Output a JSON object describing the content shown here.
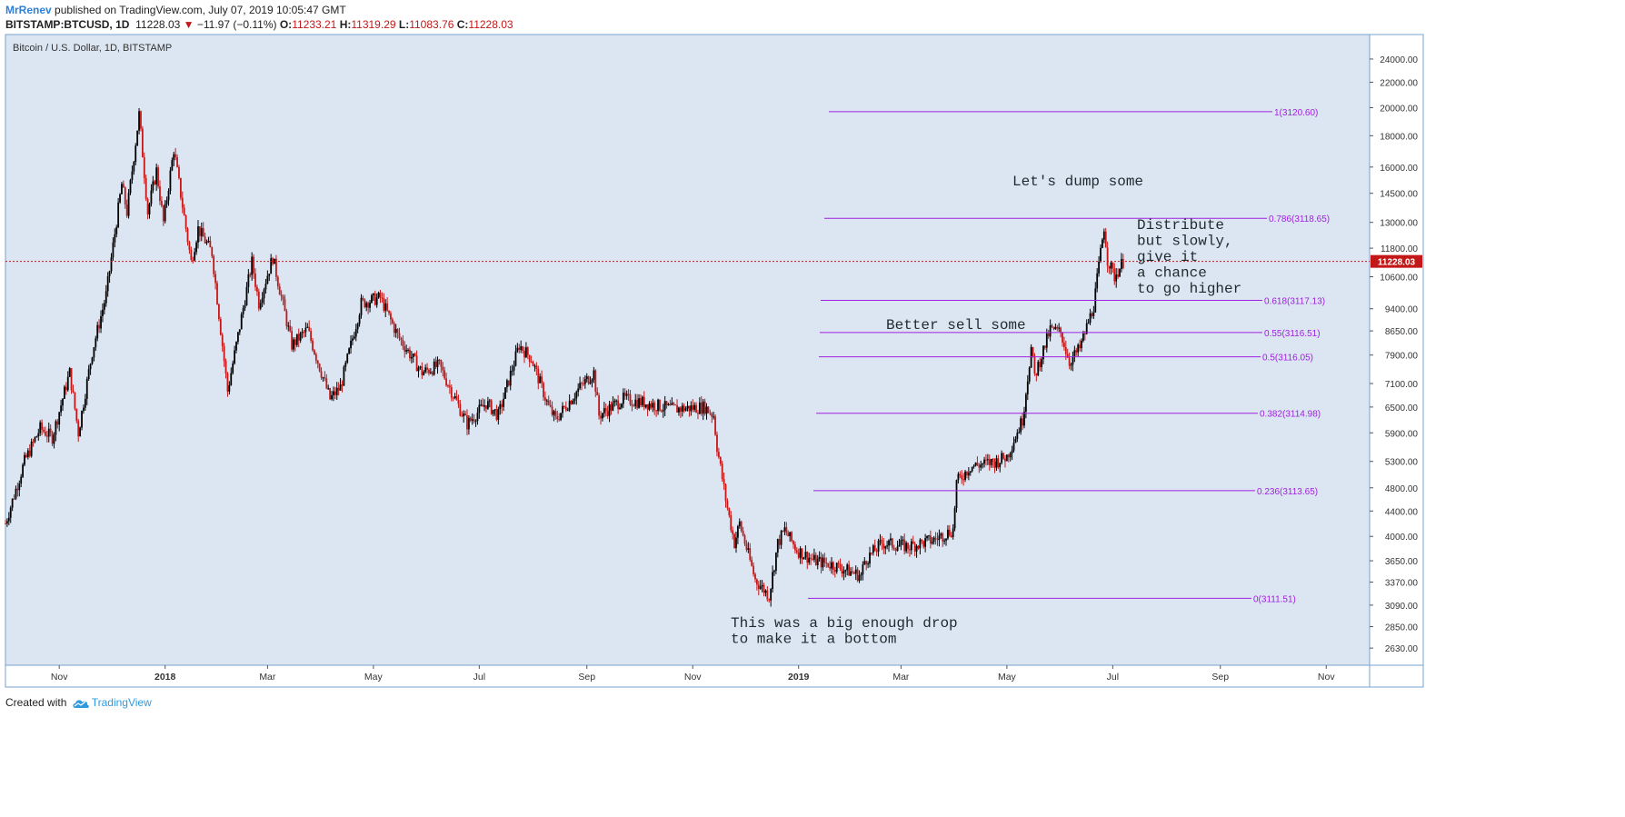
{
  "header": {
    "author": "MrRenev",
    "published": "published on TradingView.com, July 07, 2019 10:05:47 GMT",
    "symbol": "BITSTAMP:BTCUSD, 1D",
    "last": "11228.03",
    "arrow": "▼",
    "change": "−11.97 (−0.11%)",
    "o_label": "O:",
    "o_value": "11233.21",
    "h_label": "H:",
    "h_value": "11319.29",
    "l_label": "L:",
    "l_value": "11083.76",
    "c_label": "C:",
    "c_value": "11228.03"
  },
  "footer": {
    "created_with": "Created with",
    "brand": "TradingView"
  },
  "colors": {
    "background": "#dbe6f2",
    "up_candle": "#000000",
    "down_candle": "#c41818",
    "fib_line": "#a020e0",
    "price_line": "#c41818",
    "price_badge": "#c41818"
  },
  "chart_data": {
    "type": "candlestick",
    "title": "Bitcoin / U.S. Dollar, 1D, BITSTAMP",
    "x_ticks": [
      "Nov",
      "2018",
      "Mar",
      "May",
      "Jul",
      "Sep",
      "Nov",
      "2019",
      "Mar",
      "May",
      "Jul",
      "Sep",
      "Nov"
    ],
    "x_tick_dates": [
      "2017-11-01",
      "2018-01-01",
      "2018-03-01",
      "2018-05-01",
      "2018-07-01",
      "2018-09-01",
      "2018-11-01",
      "2019-01-01",
      "2019-03-01",
      "2019-05-01",
      "2019-07-01",
      "2019-09-01",
      "2019-11-01"
    ],
    "y_scale": "log",
    "y_range": [
      2500,
      25000
    ],
    "y_ticks": [
      "24000.00",
      "22000.00",
      "20000.00",
      "18000.00",
      "16000.00",
      "14500.00",
      "13000.00",
      "11800.00",
      "10600.00",
      "9400.00",
      "8650.00",
      "7900.00",
      "7100.00",
      "6500.00",
      "5900.00",
      "5300.00",
      "4800.00",
      "4400.00",
      "4000.00",
      "3650.00",
      "3370.00",
      "3090.00",
      "2850.00",
      "2630.00"
    ],
    "current_price": 11228.03,
    "current_price_label": "11228.03",
    "price_path": [
      [
        "2017-10-01",
        4200
      ],
      [
        "2017-10-12",
        5300
      ],
      [
        "2017-10-21",
        6000
      ],
      [
        "2017-10-28",
        5800
      ],
      [
        "2017-11-07",
        7400
      ],
      [
        "2017-11-12",
        5900
      ],
      [
        "2017-11-20",
        8000
      ],
      [
        "2017-11-28",
        9900
      ],
      [
        "2017-12-07",
        15000
      ],
      [
        "2017-12-10",
        13500
      ],
      [
        "2017-12-17",
        19500
      ],
      [
        "2017-12-22",
        13500
      ],
      [
        "2017-12-27",
        15800
      ],
      [
        "2017-12-31",
        13000
      ],
      [
        "2018-01-06",
        17100
      ],
      [
        "2018-01-16",
        11200
      ],
      [
        "2018-01-20",
        12700
      ],
      [
        "2018-01-28",
        11600
      ],
      [
        "2018-02-06",
        6900
      ],
      [
        "2018-02-12",
        8500
      ],
      [
        "2018-02-20",
        11200
      ],
      [
        "2018-02-24",
        9600
      ],
      [
        "2018-03-04",
        11400
      ],
      [
        "2018-03-15",
        8200
      ],
      [
        "2018-03-24",
        8700
      ],
      [
        "2018-04-06",
        6700
      ],
      [
        "2018-04-12",
        7000
      ],
      [
        "2018-04-24",
        9600
      ],
      [
        "2018-05-05",
        9800
      ],
      [
        "2018-05-15",
        8500
      ],
      [
        "2018-05-29",
        7400
      ],
      [
        "2018-06-08",
        7600
      ],
      [
        "2018-06-24",
        6100
      ],
      [
        "2018-07-05",
        6600
      ],
      [
        "2018-07-12",
        6300
      ],
      [
        "2018-07-24",
        8200
      ],
      [
        "2018-07-31",
        7800
      ],
      [
        "2018-08-10",
        6500
      ],
      [
        "2018-08-14",
        6200
      ],
      [
        "2018-08-28",
        7000
      ],
      [
        "2018-09-05",
        7400
      ],
      [
        "2018-09-08",
        6300
      ],
      [
        "2018-09-22",
        6700
      ],
      [
        "2018-10-05",
        6600
      ],
      [
        "2018-10-20",
        6450
      ],
      [
        "2018-11-08",
        6500
      ],
      [
        "2018-11-13",
        6300
      ],
      [
        "2018-11-15",
        5600
      ],
      [
        "2018-11-20",
        4600
      ],
      [
        "2018-11-25",
        3900
      ],
      [
        "2018-11-28",
        4200
      ],
      [
        "2018-12-07",
        3400
      ],
      [
        "2018-12-15",
        3200
      ],
      [
        "2018-12-20",
        3900
      ],
      [
        "2018-12-24",
        4100
      ],
      [
        "2018-12-31",
        3800
      ],
      [
        "2019-01-10",
        3650
      ],
      [
        "2019-01-20",
        3600
      ],
      [
        "2019-02-06",
        3450
      ],
      [
        "2019-02-08",
        3650
      ],
      [
        "2019-02-18",
        3900
      ],
      [
        "2019-03-05",
        3850
      ],
      [
        "2019-03-20",
        3950
      ],
      [
        "2019-03-31",
        4100
      ],
      [
        "2019-04-02",
        4900
      ],
      [
        "2019-04-10",
        5200
      ],
      [
        "2019-04-25",
        5300
      ],
      [
        "2019-05-01",
        5400
      ],
      [
        "2019-05-10",
        6200
      ],
      [
        "2019-05-15",
        8100
      ],
      [
        "2019-05-17",
        7300
      ],
      [
        "2019-05-26",
        8700
      ],
      [
        "2019-06-01",
        8600
      ],
      [
        "2019-06-06",
        7700
      ],
      [
        "2019-06-12",
        8100
      ],
      [
        "2019-06-20",
        9500
      ],
      [
        "2019-06-26",
        12800
      ],
      [
        "2019-06-28",
        11300
      ],
      [
        "2019-07-02",
        10600
      ],
      [
        "2019-07-07",
        11228
      ]
    ],
    "fib_levels": [
      {
        "label": "1(3120.60)",
        "price": 19700
      },
      {
        "label": "0.786(3118.65)",
        "price": 13200
      },
      {
        "label": "0.618(3117.13)",
        "price": 9700
      },
      {
        "label": "0.55(3116.51)",
        "price": 8600
      },
      {
        "label": "0.5(3116.05)",
        "price": 7850
      },
      {
        "label": "0.382(3114.98)",
        "price": 6350
      },
      {
        "label": "0.236(3113.65)",
        "price": 4750
      },
      {
        "label": "0(3111.51)",
        "price": 3170
      }
    ],
    "annotations": [
      {
        "lines": [
          "Let's dump some"
        ]
      },
      {
        "lines": [
          "Distribute",
          "but slowly,",
          "give it",
          "a chance",
          "to go higher"
        ]
      },
      {
        "lines": [
          "Better sell some"
        ]
      },
      {
        "lines": [
          "This was a big enough drop",
          "to make it a bottom"
        ]
      }
    ]
  }
}
